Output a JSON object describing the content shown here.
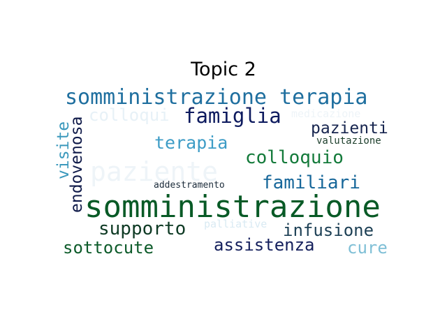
{
  "title": "Topic 2",
  "words": [
    {
      "text": "somministrazione terapia",
      "color": "#1f6f9f"
    },
    {
      "text": "colloqui",
      "color": "#e7f1f7"
    },
    {
      "text": "famiglia",
      "color": "#0d1a5e"
    },
    {
      "text": "medicazione",
      "color": "#eef4f8"
    },
    {
      "text": "pazienti",
      "color": "#17254f"
    },
    {
      "text": "valutazione",
      "color": "#1b3d2a"
    },
    {
      "text": "terapia",
      "color": "#3d9cc6"
    },
    {
      "text": "colloquio",
      "color": "#137a3a"
    },
    {
      "text": "paziente",
      "color": "#eef4f8"
    },
    {
      "text": "familiari",
      "color": "#17679a"
    },
    {
      "text": "addestramento",
      "color": "#1b2b3a"
    },
    {
      "text": "somministrazione",
      "color": "#085a26"
    },
    {
      "text": "supporto",
      "color": "#0e3a24"
    },
    {
      "text": "palliative",
      "color": "#d9eaf3"
    },
    {
      "text": "infusione",
      "color": "#1c3f54"
    },
    {
      "text": "assistenza",
      "color": "#141f5c"
    },
    {
      "text": "cure",
      "color": "#7fbfd6"
    },
    {
      "text": "sottocute",
      "color": "#0d5b2a"
    },
    {
      "text": "visite",
      "color": "#3a98bc"
    },
    {
      "text": "endovenosa",
      "color": "#101b4a"
    }
  ]
}
